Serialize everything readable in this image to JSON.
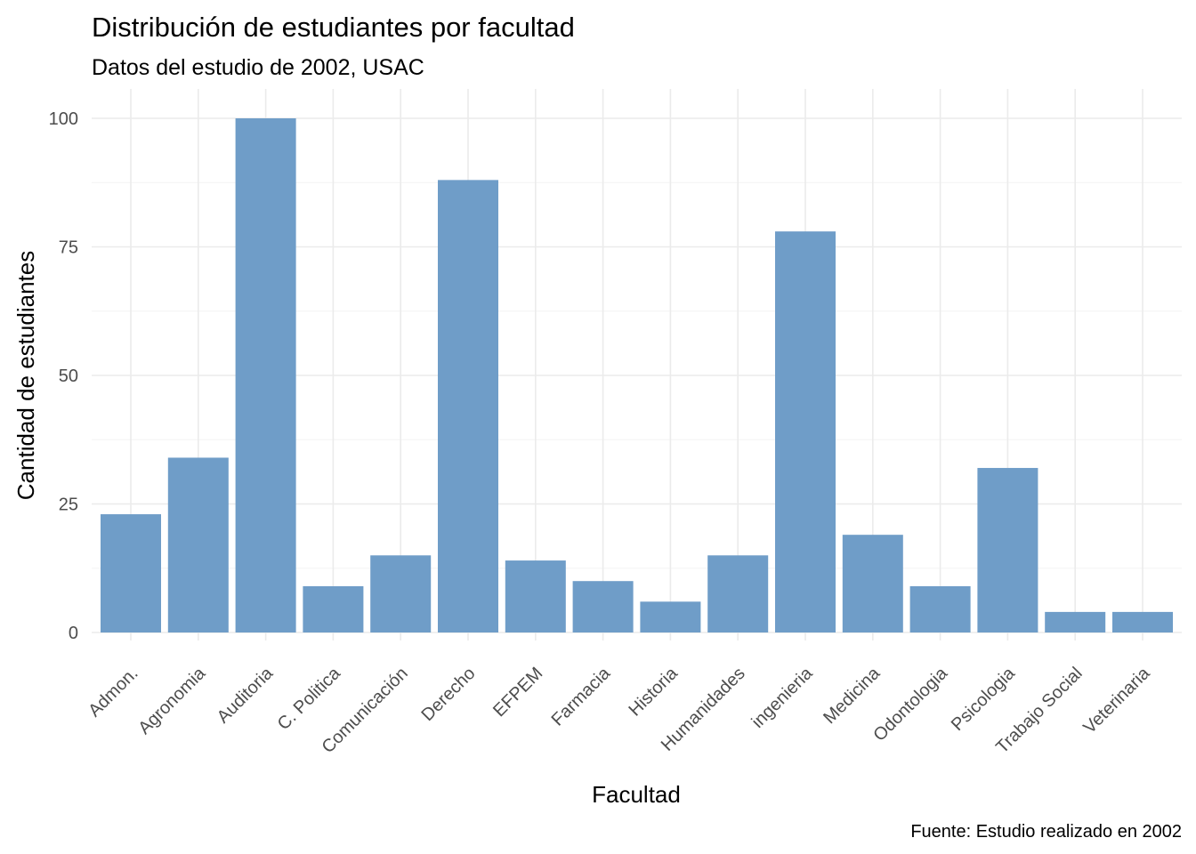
{
  "chart_data": {
    "type": "bar",
    "title": "Distribución de estudiantes por facultad",
    "subtitle": "Datos del estudio de 2002, USAC",
    "xlabel": "Facultad",
    "ylabel": "Cantidad de estudiantes",
    "caption": "Fuente: Estudio realizado en 2002",
    "categories": [
      "Admon.",
      "Agronomia",
      "Auditoria",
      "C. Politica",
      "Comunicación",
      "Derecho",
      "EFPEM",
      "Farmacia",
      "Historia",
      "Humanidades",
      "ingenieria",
      "Medicina",
      "Odontologia",
      "Psicologia",
      "Trabajo Social",
      "Veterinaria"
    ],
    "values": [
      23,
      34,
      100,
      9,
      15,
      88,
      14,
      10,
      6,
      15,
      78,
      19,
      9,
      32,
      4,
      4
    ],
    "ylim": [
      0,
      100
    ],
    "yticks": [
      0,
      25,
      50,
      75,
      100
    ],
    "grid": true,
    "legend": "none",
    "bar_color": "#6f9dc8"
  }
}
